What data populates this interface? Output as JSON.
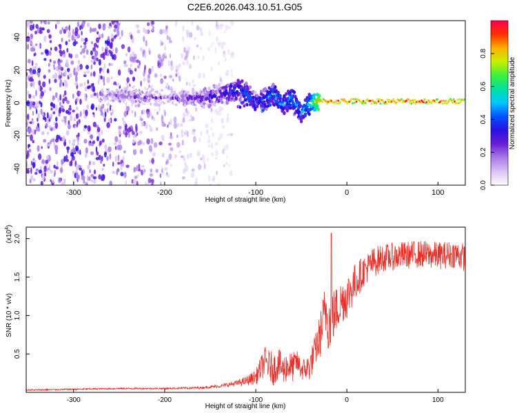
{
  "title": "C2E6.2026.043.10.51.G05",
  "colors": {
    "snr_line": "#e8312a",
    "spectrogram_colormap": [
      "#ffffff",
      "#d9c2f5",
      "#a77be8",
      "#6a1fd6",
      "#2a10e0",
      "#0050ff",
      "#00c8ff",
      "#00e0a0",
      "#3cf03c",
      "#c8f000",
      "#ffb000",
      "#ff3000",
      "#ff0050"
    ]
  },
  "chart_data": [
    {
      "type": "heatmap",
      "name": "spectrogram",
      "xlabel": "Height of straight line (km)",
      "ylabel": "Frequency (Hz)",
      "xlim": [
        -352,
        130
      ],
      "ylim": [
        -50,
        50
      ],
      "xticks": [
        -300,
        -200,
        -100,
        0,
        100
      ],
      "xtick_labels": [
        "-300",
        "-200",
        "-100",
        "0",
        "100"
      ],
      "yticks": [
        -40,
        -20,
        0,
        20,
        40
      ],
      "ytick_labels": [
        "-40",
        "-20",
        "0",
        "20",
        "40"
      ],
      "colorbar": {
        "label": "Normalized spectral amplitude",
        "range": [
          0,
          1
        ],
        "ticks": [
          0.0,
          0.2,
          0.4,
          0.6,
          0.8
        ],
        "tick_labels": [
          "0.0",
          "0.2",
          "0.4",
          "0.6",
          "0.8"
        ]
      },
      "signal_trace": {
        "description_free": true,
        "x": [
          -270,
          -230,
          -200,
          -160,
          -130,
          -120,
          -110,
          -100,
          -90,
          -80,
          -70,
          -60,
          -50,
          -40,
          -30,
          -20,
          0,
          50,
          100,
          130
        ],
        "freq": [
          5,
          4,
          3,
          3,
          6,
          9,
          6,
          0,
          2,
          6,
          -2,
          4,
          -6,
          0,
          1,
          1,
          1,
          1,
          1,
          1
        ],
        "freq_branch2_x": [
          -120,
          -110,
          -100,
          -90,
          -80,
          -70,
          -60,
          -50
        ],
        "freq_branch2": [
          -2,
          0,
          2,
          -3,
          0,
          1,
          -4,
          -8
        ],
        "amplitude": [
          0.2,
          0.25,
          0.2,
          0.3,
          0.4,
          0.45,
          0.45,
          0.4,
          0.45,
          0.5,
          0.5,
          0.5,
          0.5,
          0.55,
          0.85,
          0.95,
          0.95,
          0.95,
          0.95,
          0.95
        ]
      },
      "noise_region_xlim": [
        -352,
        -140
      ]
    },
    {
      "type": "line",
      "name": "snr",
      "xlabel": "Height of straight line (km)",
      "ylabel": "SNR (10 * v/v)",
      "y_multiplier_label": "(x10",
      "y_multiplier_exp": "4",
      "y_multiplier_close": ")",
      "xlim": [
        -352,
        130
      ],
      "ylim": [
        0,
        2.15
      ],
      "xticks": [
        -300,
        -200,
        -100,
        0,
        100
      ],
      "xtick_labels": [
        "-300",
        "-200",
        "-100",
        "0",
        "100"
      ],
      "yticks": [
        0.5,
        1.0,
        1.5,
        2.0
      ],
      "ytick_labels": [
        "0.5",
        "1.0",
        "1.5",
        "2.0"
      ],
      "series": [
        {
          "name": "SNR",
          "x": [
            -352,
            -300,
            -250,
            -200,
            -160,
            -140,
            -120,
            -110,
            -100,
            -95,
            -90,
            -85,
            -80,
            -75,
            -70,
            -65,
            -60,
            -55,
            -50,
            -45,
            -40,
            -35,
            -30,
            -25,
            -22,
            -20,
            -15,
            -10,
            -5,
            0,
            10,
            20,
            30,
            40,
            60,
            80,
            100,
            120,
            130
          ],
          "y": [
            0.03,
            0.04,
            0.05,
            0.05,
            0.06,
            0.08,
            0.12,
            0.15,
            0.2,
            0.3,
            0.4,
            0.35,
            0.3,
            0.38,
            0.28,
            0.35,
            0.32,
            0.4,
            0.3,
            0.3,
            0.35,
            0.55,
            0.7,
            1.0,
            1.1,
            0.9,
            1.0,
            1.1,
            1.2,
            1.25,
            1.45,
            1.6,
            1.7,
            1.75,
            1.78,
            1.8,
            1.78,
            1.8,
            1.75
          ],
          "noise_amplitude": [
            0.01,
            0.01,
            0.01,
            0.01,
            0.015,
            0.02,
            0.04,
            0.06,
            0.1,
            0.15,
            0.2,
            0.2,
            0.22,
            0.2,
            0.2,
            0.2,
            0.2,
            0.15,
            0.15,
            0.15,
            0.2,
            0.2,
            0.3,
            0.35,
            0.4,
            0.4,
            0.35,
            0.3,
            0.3,
            0.3,
            0.25,
            0.2,
            0.2,
            0.18,
            0.18,
            0.18,
            0.18,
            0.18,
            0.18
          ]
        }
      ],
      "annotations": [
        {
          "label": "spike",
          "x": -17,
          "y": 2.07
        }
      ]
    }
  ]
}
